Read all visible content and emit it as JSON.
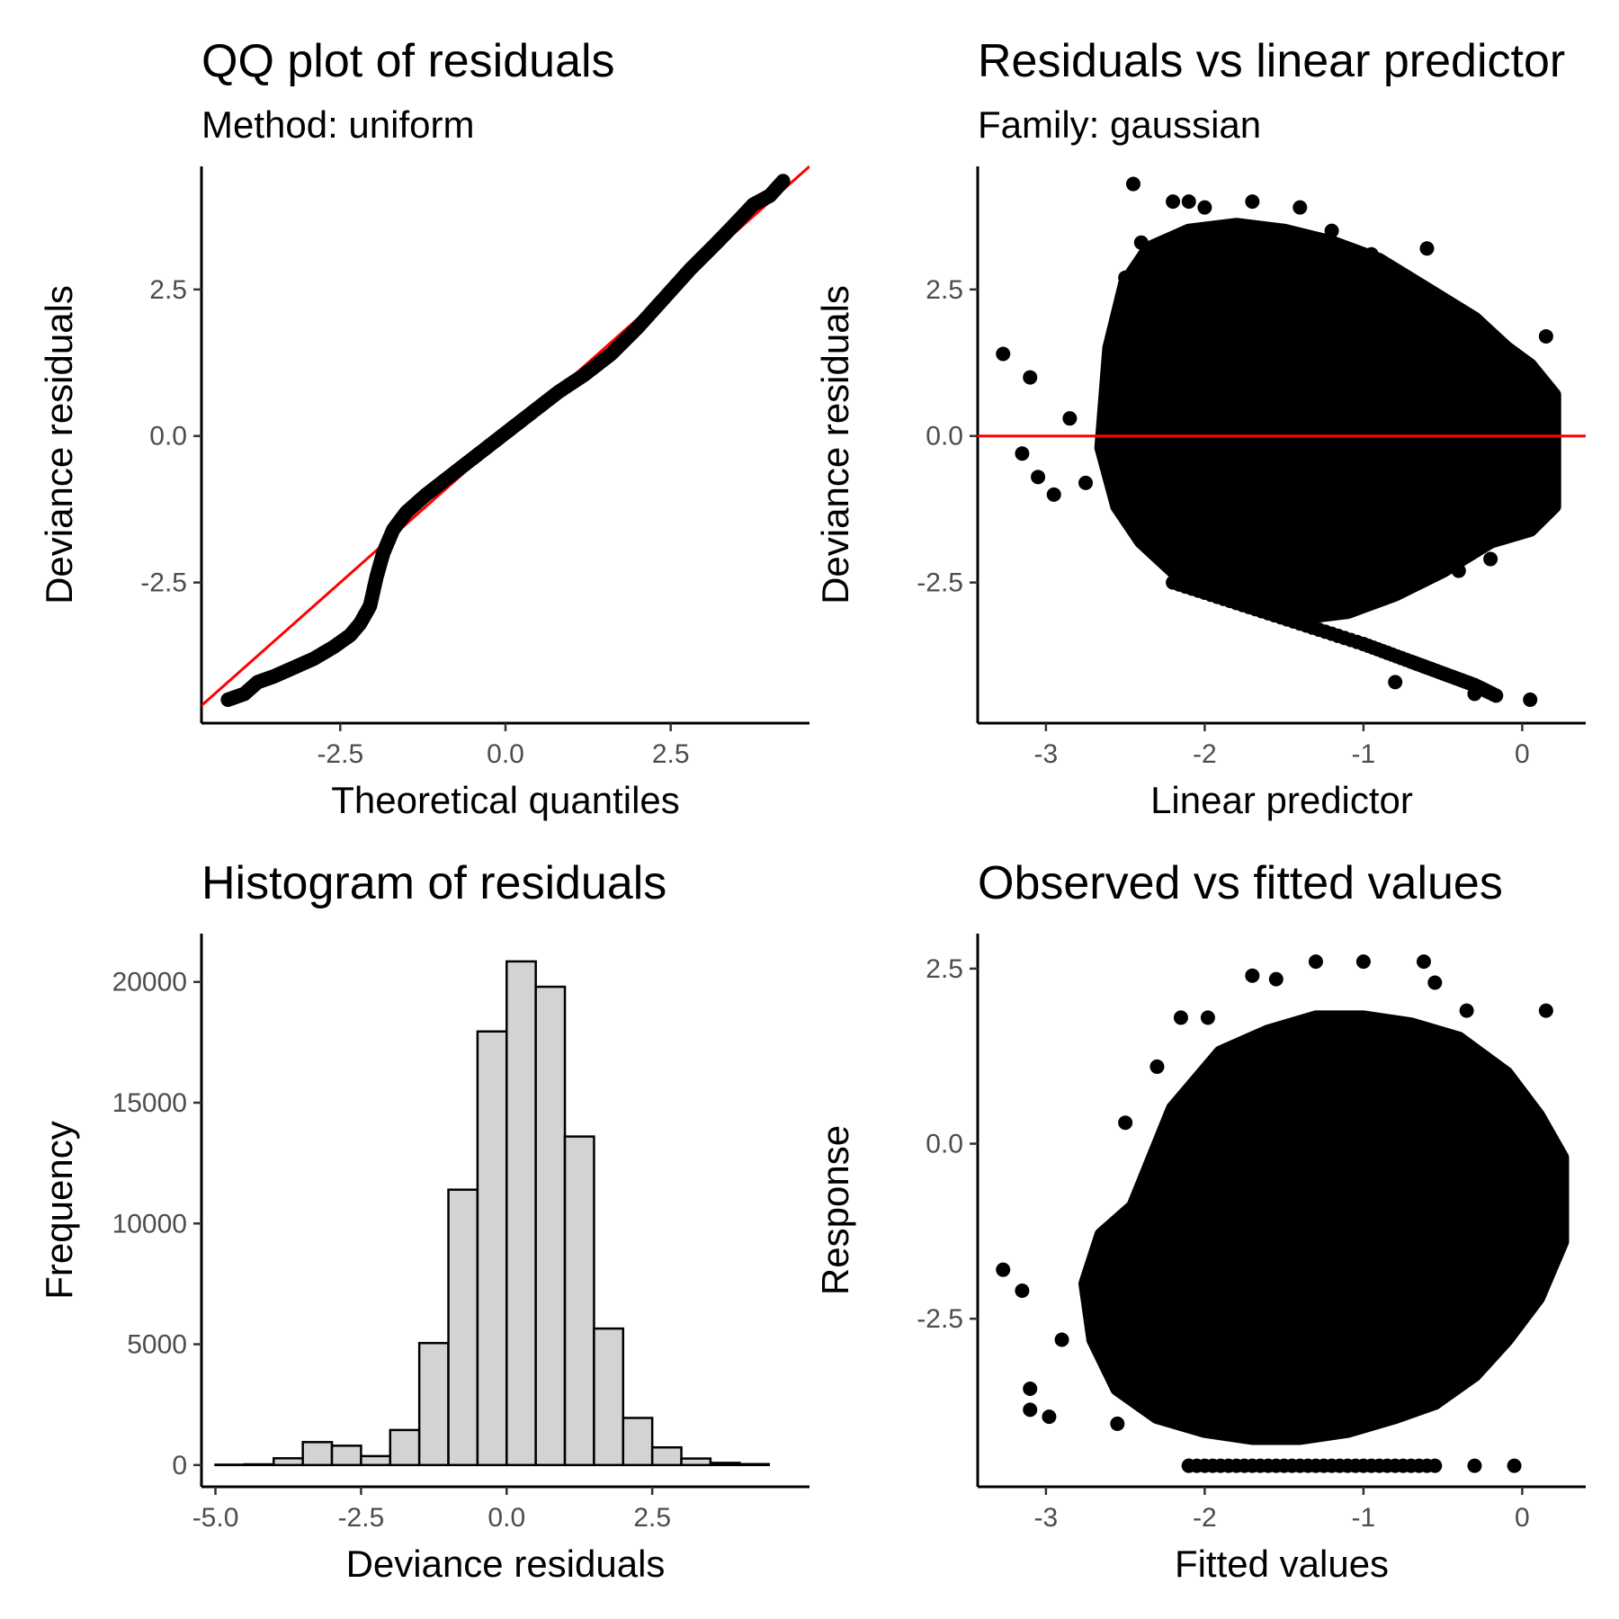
{
  "chart_data": [
    {
      "type": "scatter",
      "title": "QQ plot of residuals",
      "subtitle": "Method: uniform",
      "xlabel": "Theoretical quantiles",
      "ylabel": "Deviance residuals",
      "xlim": [
        -4.6,
        4.6
      ],
      "ylim": [
        -4.9,
        4.6
      ],
      "xticks": [
        -2.5,
        0.0,
        2.5
      ],
      "xtick_labels": [
        "-2.5",
        "0.0",
        "2.5"
      ],
      "yticks": [
        -2.5,
        0.0,
        2.5
      ],
      "ytick_labels": [
        "-2.5",
        "0.0",
        "2.5"
      ],
      "reference_line": {
        "type": "abline",
        "color": "#ff0000",
        "intercept": 0,
        "slope": 1
      },
      "curve": {
        "x": [
          -4.2,
          -3.95,
          -3.75,
          -3.5,
          -3.2,
          -2.9,
          -2.6,
          -2.35,
          -2.2,
          -2.05,
          -1.95,
          -1.85,
          -1.7,
          -1.5,
          -1.2,
          -0.8,
          -0.4,
          0.0,
          0.4,
          0.8,
          1.2,
          1.6,
          2.0,
          2.4,
          2.8,
          3.2,
          3.5,
          3.75,
          4.0,
          4.2
        ],
        "y": [
          -4.5,
          -4.4,
          -4.2,
          -4.1,
          -3.95,
          -3.8,
          -3.6,
          -3.4,
          -3.2,
          -2.9,
          -2.4,
          -2.0,
          -1.6,
          -1.3,
          -1.0,
          -0.65,
          -0.3,
          0.05,
          0.4,
          0.75,
          1.05,
          1.4,
          1.85,
          2.35,
          2.85,
          3.3,
          3.65,
          3.95,
          4.1,
          4.35
        ]
      }
    },
    {
      "type": "scatter",
      "title": "Residuals vs linear predictor",
      "subtitle": "Family: gaussian",
      "xlabel": "Linear predictor",
      "ylabel": "Deviance residuals",
      "xlim": [
        -3.43,
        0.4
      ],
      "ylim": [
        -4.9,
        4.6
      ],
      "xticks": [
        -3,
        -2,
        -1,
        0
      ],
      "xtick_labels": [
        "-3",
        "-2",
        "-1",
        "0"
      ],
      "yticks": [
        -2.5,
        0.0,
        2.5
      ],
      "ytick_labels": [
        "-2.5",
        "0.0",
        "2.5"
      ],
      "reference_line": {
        "type": "hline",
        "color": "#ff0000",
        "y": 0
      },
      "cloud_outline": {
        "x": [
          -2.5,
          -2.35,
          -2.1,
          -1.8,
          -1.5,
          -1.2,
          -0.9,
          -0.6,
          -0.3,
          -0.1,
          0.05,
          0.2,
          0.2,
          0.05,
          -0.2,
          -0.5,
          -0.8,
          -1.1,
          -1.4,
          -1.7,
          -2.0,
          -2.2,
          -2.4,
          -2.55,
          -2.65,
          -2.6
        ],
        "y": [
          2.6,
          3.2,
          3.5,
          3.6,
          3.5,
          3.3,
          3.0,
          2.5,
          2.0,
          1.5,
          1.2,
          0.7,
          -1.2,
          -1.6,
          -1.8,
          -2.3,
          -2.7,
          -3.0,
          -3.1,
          -2.8,
          -2.6,
          -2.3,
          -1.8,
          -1.2,
          -0.2,
          1.5
        ]
      },
      "lower_band": {
        "x": [
          -2.2,
          -1.8,
          -1.4,
          -1.0,
          -0.7,
          -0.5,
          -0.3,
          -0.15
        ],
        "y": [
          -2.5,
          -2.85,
          -3.2,
          -3.55,
          -3.85,
          -4.05,
          -4.25,
          -4.45
        ]
      },
      "points": {
        "x": [
          -3.27,
          -3.15,
          -3.1,
          -3.05,
          -2.95,
          -2.85,
          -2.75,
          -2.55,
          -2.5,
          -2.45,
          -2.4,
          -2.3,
          -2.2,
          -2.1,
          -2.0,
          -1.7,
          -1.4,
          -1.2,
          -0.95,
          -0.6,
          -0.4,
          -0.2,
          0.05,
          0.15,
          -0.3,
          -0.8
        ],
        "y": [
          1.4,
          -0.3,
          1.0,
          -0.7,
          -1.0,
          0.3,
          -0.8,
          1.8,
          2.7,
          4.3,
          3.3,
          2.2,
          4.0,
          4.0,
          3.9,
          4.0,
          3.9,
          3.5,
          3.1,
          3.2,
          -2.3,
          -2.1,
          -4.5,
          1.7,
          -4.4,
          -4.2
        ]
      }
    },
    {
      "type": "bar",
      "title": "Histogram of residuals",
      "xlabel": "Deviance residuals",
      "ylabel": "Frequency",
      "xlim": [
        -5.24,
        5.2
      ],
      "ylim": [
        -900,
        22000
      ],
      "xticks": [
        -5.0,
        -2.5,
        0.0,
        2.5
      ],
      "xtick_labels": [
        "-5.0",
        "-2.5",
        "0.0",
        "2.5"
      ],
      "yticks": [
        0,
        5000,
        10000,
        15000,
        20000
      ],
      "ytick_labels": [
        "0",
        "5000",
        "10000",
        "15000",
        "20000"
      ],
      "bin_width": 0.5,
      "bin_starts": [
        -5.0,
        -4.5,
        -4.0,
        -3.5,
        -3.0,
        -2.5,
        -2.0,
        -1.5,
        -1.0,
        -0.5,
        0.0,
        0.5,
        1.0,
        1.5,
        2.0,
        2.5,
        3.0,
        3.5,
        4.0
      ],
      "values": [
        15,
        30,
        280,
        950,
        800,
        370,
        1450,
        5050,
        11400,
        17950,
        20850,
        19800,
        13600,
        5650,
        1950,
        730,
        270,
        90,
        40
      ],
      "fill_color": "#d3d3d3",
      "edge_color": "#000000"
    },
    {
      "type": "scatter",
      "title": "Observed vs fitted values",
      "xlabel": "Fitted values",
      "ylabel": "Response",
      "xlim": [
        -3.43,
        0.4
      ],
      "ylim": [
        -4.9,
        3.0
      ],
      "xticks": [
        -3,
        -2,
        -1,
        0
      ],
      "xtick_labels": [
        "-3",
        "-2",
        "-1",
        "0"
      ],
      "yticks": [
        -2.5,
        0.0,
        2.5
      ],
      "ytick_labels": [
        "-2.5",
        "0.0",
        "2.5"
      ],
      "cloud_outline": {
        "x": [
          -2.45,
          -2.2,
          -1.9,
          -1.6,
          -1.3,
          -1.0,
          -0.7,
          -0.4,
          -0.1,
          0.1,
          0.25,
          0.25,
          0.1,
          -0.1,
          -0.3,
          -0.55,
          -0.8,
          -1.1,
          -1.4,
          -1.7,
          -2.0,
          -2.3,
          -2.55,
          -2.7,
          -2.75,
          -2.65
        ],
        "y": [
          -0.9,
          0.5,
          1.3,
          1.6,
          1.8,
          1.8,
          1.7,
          1.5,
          1.0,
          0.4,
          -0.2,
          -1.4,
          -2.2,
          -2.8,
          -3.3,
          -3.7,
          -3.9,
          -4.1,
          -4.2,
          -4.2,
          -4.1,
          -3.9,
          -3.5,
          -2.8,
          -2.0,
          -1.3
        ]
      },
      "floor_y": -4.6,
      "floor_x_range": [
        -2.1,
        -0.55
      ],
      "points": {
        "x": [
          -3.27,
          -3.15,
          -3.1,
          -2.98,
          -2.9,
          -2.5,
          -2.3,
          -2.15,
          -1.98,
          -1.7,
          -1.55,
          -1.3,
          -1.0,
          -0.62,
          -0.55,
          -0.35,
          -0.1,
          0.15,
          0.25,
          -2.1,
          -0.3,
          -0.05,
          -2.55,
          -3.1
        ],
        "y": [
          -1.8,
          -2.1,
          -3.5,
          -3.9,
          -2.8,
          0.3,
          1.1,
          1.8,
          1.8,
          2.4,
          2.35,
          2.6,
          2.6,
          2.6,
          2.3,
          1.9,
          -2.2,
          1.9,
          -0.3,
          -4.6,
          -4.6,
          -4.6,
          -4.0,
          -3.8
        ]
      }
    }
  ]
}
